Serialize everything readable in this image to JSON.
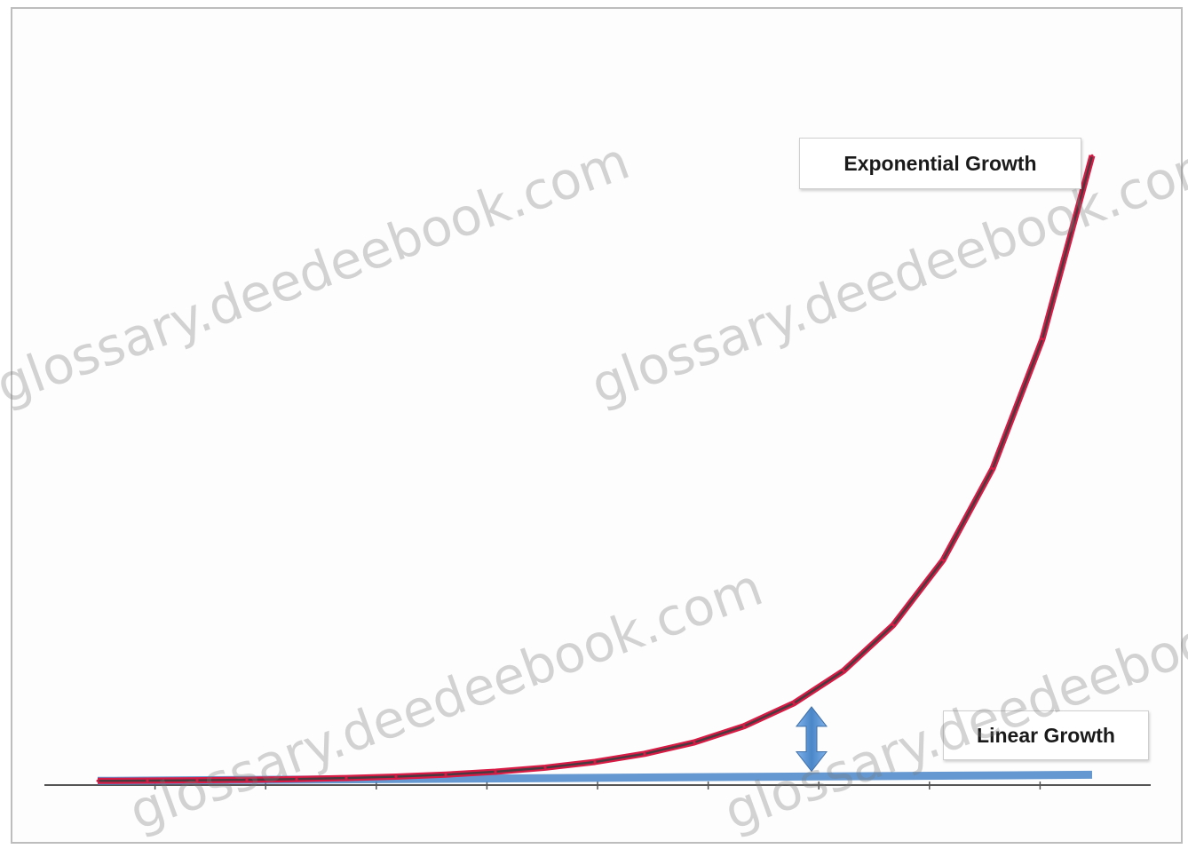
{
  "chart_data": {
    "type": "line",
    "title": "",
    "xlabel": "",
    "ylabel": "",
    "grid": false,
    "legend": "none",
    "xlim": [
      0,
      10
    ],
    "ylim": [
      0,
      1200
    ],
    "series": [
      {
        "name": "Exponential Growth",
        "color": "#d81b45",
        "x": [
          0,
          0.5,
          1,
          1.5,
          2,
          2.5,
          3,
          3.5,
          4,
          4.5,
          5,
          5.5,
          6,
          6.5,
          7,
          7.5,
          8,
          8.5,
          9,
          9.5,
          10
        ],
        "y": [
          1,
          1.4,
          2,
          2.8,
          4,
          5.7,
          8,
          11.3,
          16,
          22.6,
          32,
          45.3,
          64,
          90.5,
          128,
          181,
          256,
          362,
          512,
          724,
          1024
        ]
      },
      {
        "name": "Linear Growth",
        "color": "#4a86c8",
        "x": [
          0,
          10
        ],
        "y": [
          1,
          11
        ]
      }
    ],
    "annotations": {
      "exponential_label": "Exponential Growth",
      "linear_label": "Linear Growth",
      "gap_arrow": {
        "x": 7,
        "y_from": 8,
        "y_to": 128,
        "color": "#5b9bd5"
      }
    }
  },
  "watermark": "glossary.deedeebook.com"
}
